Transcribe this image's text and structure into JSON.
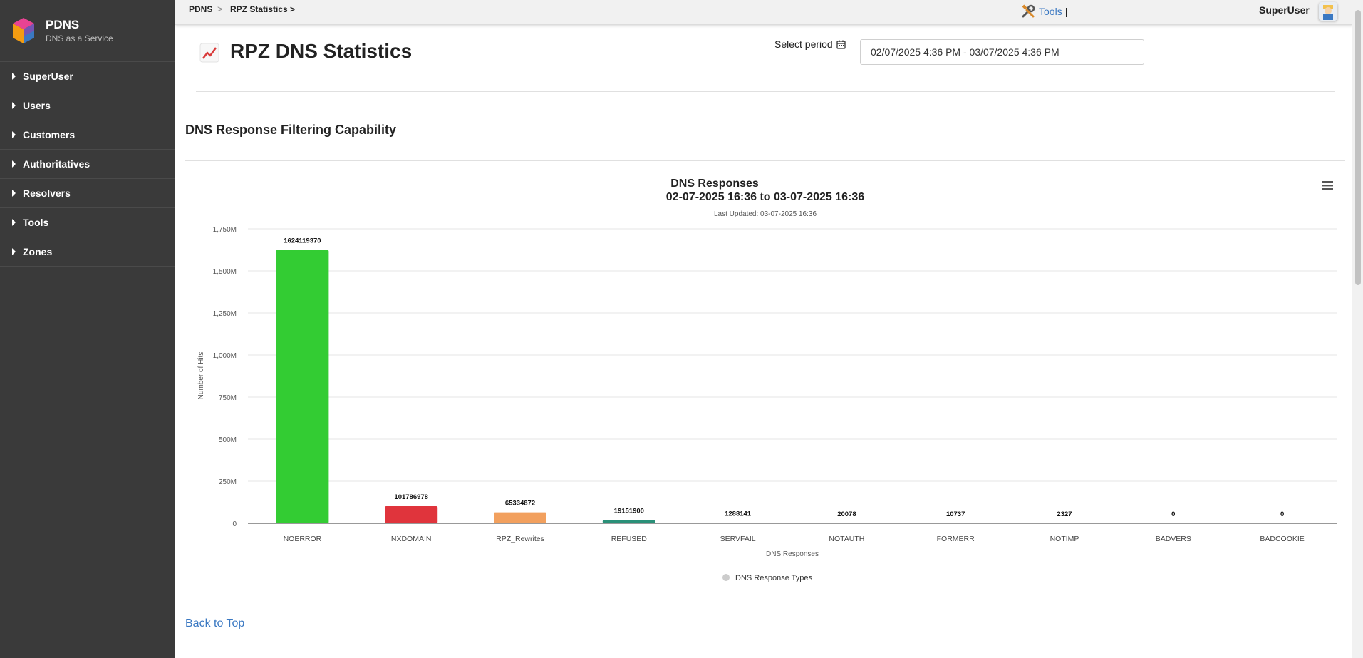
{
  "brand": {
    "name": "PDNS",
    "subtitle": "DNS as a Service"
  },
  "sidebar": {
    "items": [
      {
        "label": "SuperUser"
      },
      {
        "label": "Users"
      },
      {
        "label": "Customers"
      },
      {
        "label": "Authoritatives"
      },
      {
        "label": "Resolvers"
      },
      {
        "label": "Tools"
      },
      {
        "label": "Zones"
      }
    ]
  },
  "breadcrumb": {
    "root": "PDNS",
    "separator": ">",
    "current": "RPZ Statistics >"
  },
  "header": {
    "tools_label": "Tools",
    "tools_separator": "|",
    "username": "SuperUser"
  },
  "page": {
    "title": "RPZ DNS Statistics",
    "period_label": "Select period",
    "period_value": "02/07/2025 4:36 PM - 03/07/2025 4:36 PM",
    "section_title": "DNS Response Filtering Capability",
    "back_to_top": "Back to Top"
  },
  "colors": {
    "accent": "#3a78c2",
    "sidebar": "#3a3a3a"
  },
  "chart_data": {
    "type": "bar",
    "title": "DNS Responses",
    "subtitle": "02-07-2025 16:36 to 03-07-2025 16:36",
    "caption": "Last Updated: 03-07-2025 16:36",
    "xlabel": "DNS Responses",
    "ylabel": "Number of Hits",
    "ylim": [
      0,
      1750000000
    ],
    "yticks": [
      {
        "value": 0,
        "label": "0"
      },
      {
        "value": 250000000,
        "label": "250M"
      },
      {
        "value": 500000000,
        "label": "500M"
      },
      {
        "value": 750000000,
        "label": "750M"
      },
      {
        "value": 1000000000,
        "label": "1,000M"
      },
      {
        "value": 1250000000,
        "label": "1,250M"
      },
      {
        "value": 1500000000,
        "label": "1,500M"
      },
      {
        "value": 1750000000,
        "label": "1,750M"
      }
    ],
    "categories": [
      "NOERROR",
      "NXDOMAIN",
      "RPZ_Rewrites",
      "REFUSED",
      "SERVFAIL",
      "NOTAUTH",
      "FORMERR",
      "NOTIMP",
      "BADVERS",
      "BADCOOKIE"
    ],
    "values": [
      1624119370,
      101786978,
      65334872,
      19151900,
      1288141,
      20078,
      10737,
      2327,
      0,
      0
    ],
    "colors": [
      "#33cc33",
      "#e0343c",
      "#f2a05e",
      "#2a9078",
      "#3a78c2",
      "#3a78c2",
      "#3a78c2",
      "#3a78c2",
      "#3a78c2",
      "#3a78c2"
    ],
    "legend": {
      "label": "DNS Response Types",
      "position": "bottom"
    },
    "grid": true
  }
}
